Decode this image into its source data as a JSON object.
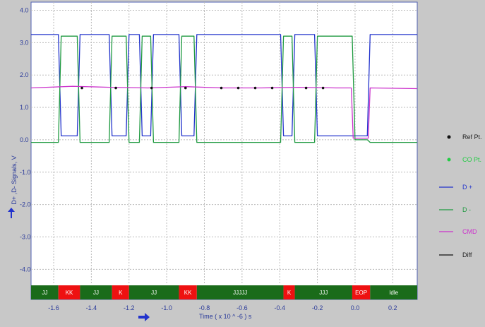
{
  "chart_data": {
    "type": "line",
    "xlabel": "Time  ( x 10 ^ -6 ) s",
    "ylabel": "D+ ,D- Signals, V",
    "xlim": [
      -1.72,
      0.33
    ],
    "ylim": [
      -4.45,
      4.25
    ],
    "x_ticks": [
      -1.6,
      -1.4,
      -1.2,
      -1.0,
      -0.8,
      -0.6,
      -0.4,
      -0.2,
      0.0,
      0.2
    ],
    "y_ticks": [
      4.0,
      3.0,
      2.0,
      1.0,
      0.0,
      -1.0,
      -2.0,
      -3.0,
      -4.0
    ],
    "x_tick_labels": [
      "-1.6",
      "-1.4",
      "-1.2",
      "-1.0",
      "-0.8",
      "-0.6",
      "-0.4",
      "-0.2",
      "0.0",
      "0.2"
    ],
    "y_tick_labels": [
      "4.0",
      "3.0",
      "2.0",
      "1.0",
      "0.0",
      "-1.0",
      "-2.0",
      "-3.0",
      "-4.0"
    ],
    "grid": true,
    "legend_position": "right",
    "series": [
      {
        "name": "D +",
        "color": "#2233cc",
        "points": [
          [
            -1.72,
            3.25
          ],
          [
            -1.575,
            3.25
          ],
          [
            -1.56,
            0.12
          ],
          [
            -1.475,
            0.12
          ],
          [
            -1.46,
            3.25
          ],
          [
            -1.305,
            3.25
          ],
          [
            -1.29,
            0.12
          ],
          [
            -1.215,
            0.12
          ],
          [
            -1.2,
            3.25
          ],
          [
            -1.145,
            3.25
          ],
          [
            -1.13,
            0.12
          ],
          [
            -1.085,
            0.12
          ],
          [
            -1.07,
            3.25
          ],
          [
            -0.935,
            3.25
          ],
          [
            -0.92,
            0.12
          ],
          [
            -0.855,
            0.12
          ],
          [
            -0.84,
            3.25
          ],
          [
            -0.395,
            3.25
          ],
          [
            -0.38,
            0.12
          ],
          [
            -0.335,
            0.12
          ],
          [
            -0.32,
            3.25
          ],
          [
            -0.215,
            3.25
          ],
          [
            -0.2,
            0.12
          ],
          [
            -0.015,
            0.12
          ],
          [
            0.0,
            0.12
          ],
          [
            0.065,
            0.12
          ],
          [
            0.08,
            3.25
          ],
          [
            0.33,
            3.25
          ]
        ]
      },
      {
        "name": "D -",
        "color": "#1f9a40",
        "points": [
          [
            -1.72,
            -0.08
          ],
          [
            -1.575,
            -0.08
          ],
          [
            -1.56,
            3.2
          ],
          [
            -1.475,
            3.2
          ],
          [
            -1.46,
            -0.08
          ],
          [
            -1.305,
            -0.08
          ],
          [
            -1.29,
            3.2
          ],
          [
            -1.215,
            3.2
          ],
          [
            -1.2,
            -0.08
          ],
          [
            -1.145,
            -0.08
          ],
          [
            -1.13,
            3.2
          ],
          [
            -1.085,
            3.2
          ],
          [
            -1.07,
            -0.08
          ],
          [
            -0.935,
            -0.08
          ],
          [
            -0.92,
            3.2
          ],
          [
            -0.855,
            3.2
          ],
          [
            -0.84,
            -0.08
          ],
          [
            -0.395,
            -0.08
          ],
          [
            -0.38,
            3.2
          ],
          [
            -0.335,
            3.2
          ],
          [
            -0.32,
            -0.08
          ],
          [
            -0.215,
            -0.08
          ],
          [
            -0.2,
            3.2
          ],
          [
            -0.015,
            3.2
          ],
          [
            0.0,
            0.0
          ],
          [
            0.065,
            0.0
          ],
          [
            0.08,
            -0.08
          ],
          [
            0.33,
            -0.08
          ]
        ]
      },
      {
        "name": "CMD",
        "color": "#cc33cc",
        "points": [
          [
            -1.72,
            1.6
          ],
          [
            -1.5,
            1.65
          ],
          [
            -1.3,
            1.62
          ],
          [
            -1.1,
            1.6
          ],
          [
            -0.9,
            1.64
          ],
          [
            -0.7,
            1.6
          ],
          [
            -0.5,
            1.6
          ],
          [
            -0.3,
            1.62
          ],
          [
            -0.1,
            1.6
          ],
          [
            -0.02,
            1.6
          ],
          [
            -0.01,
            0.05
          ],
          [
            0.07,
            0.05
          ],
          [
            0.08,
            1.6
          ],
          [
            0.33,
            1.58
          ]
        ]
      },
      {
        "name": "Diff",
        "color": "#111111",
        "points": []
      }
    ],
    "ref_points": {
      "name": "Ref Pt.",
      "color": "#111111",
      "points": [
        [
          -1.45,
          1.6
        ],
        [
          -1.27,
          1.6
        ],
        [
          -1.08,
          1.6
        ],
        [
          -0.9,
          1.6
        ],
        [
          -0.71,
          1.6
        ],
        [
          -0.62,
          1.6
        ],
        [
          -0.53,
          1.6
        ],
        [
          -0.44,
          1.6
        ],
        [
          -0.26,
          1.6
        ],
        [
          -0.17,
          1.6
        ]
      ]
    },
    "co_points": {
      "name": "CO Pt.",
      "color": "#22cc44",
      "points": []
    },
    "states": [
      {
        "label": "JJ",
        "start": -1.72,
        "end": -1.575,
        "color": "#1a6b1a"
      },
      {
        "label": "KK",
        "start": -1.575,
        "end": -1.46,
        "color": "#ee1111"
      },
      {
        "label": "JJ",
        "start": -1.46,
        "end": -1.29,
        "color": "#1a6b1a"
      },
      {
        "label": "K",
        "start": -1.29,
        "end": -1.2,
        "color": "#ee1111"
      },
      {
        "label": "JJ",
        "start": -1.2,
        "end": -0.935,
        "color": "#1a6b1a"
      },
      {
        "label": "KK",
        "start": -0.935,
        "end": -0.84,
        "color": "#ee1111"
      },
      {
        "label": "JJJJJ",
        "start": -0.84,
        "end": -0.38,
        "color": "#1a6b1a"
      },
      {
        "label": "K",
        "start": -0.38,
        "end": -0.32,
        "color": "#ee1111"
      },
      {
        "label": "JJJ",
        "start": -0.32,
        "end": -0.015,
        "color": "#1a6b1a"
      },
      {
        "label": "EOP",
        "start": -0.015,
        "end": 0.08,
        "color": "#ee1111"
      },
      {
        "label": "Idle",
        "start": 0.08,
        "end": 0.33,
        "color": "#1a6b1a"
      }
    ]
  }
}
